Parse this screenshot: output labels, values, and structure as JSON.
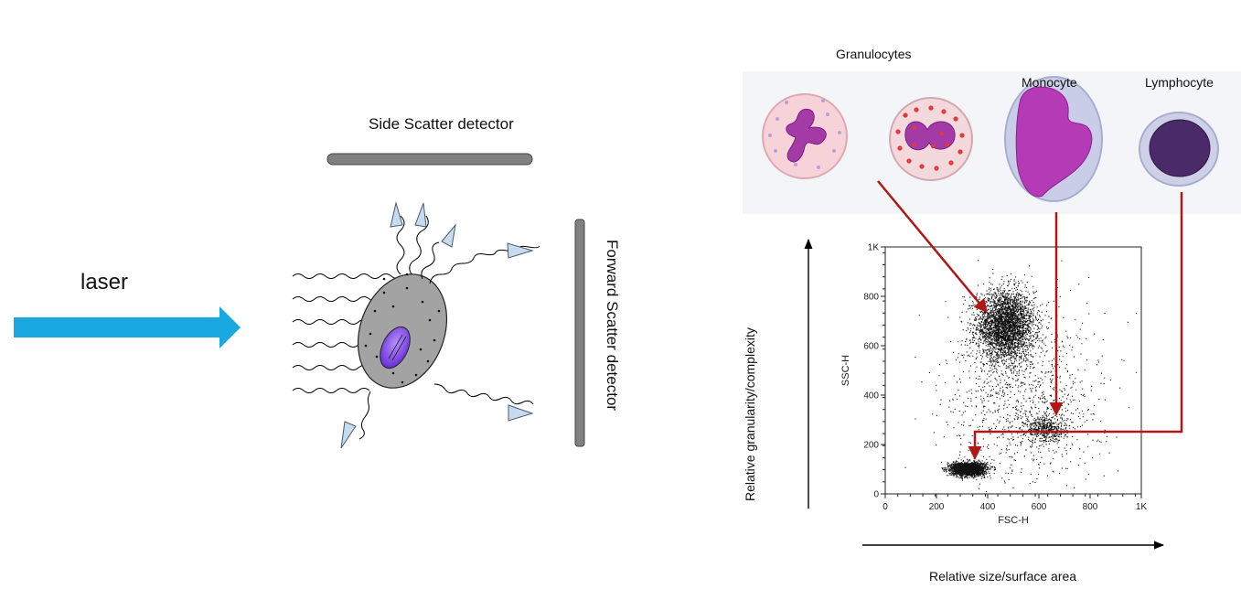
{
  "left": {
    "laser_label": "laser",
    "side_detector_label": "Side Scatter detector",
    "forward_detector_label": "Forward Scatter detector",
    "colors": {
      "laser": "#1aa8e0",
      "detector": "#808080",
      "cell": "#a3a3a3",
      "nucleus": "#7d3fe0",
      "ray_arrow": "#c7dbf0"
    }
  },
  "right": {
    "cells": [
      {
        "name": "Granulocytes",
        "icon": "neutrophil-cell"
      },
      {
        "name": "",
        "icon": "eosinophil-cell"
      },
      {
        "name": "Monocyte",
        "icon": "monocyte-cell"
      },
      {
        "name": "Lymphocyte",
        "icon": "lymphocyte-cell"
      }
    ],
    "y_axis_label": "Relative granularity/complexity",
    "x_axis_label": "Relative size/surface area",
    "connector_color": "#b01818"
  },
  "chart_data": {
    "type": "scatter",
    "xlabel": "FSC-H",
    "ylabel": "SSC-H",
    "xlim": [
      0,
      1024
    ],
    "ylim": [
      0,
      1024
    ],
    "x_ticks": [
      "0",
      "200",
      "400",
      "600",
      "800",
      "1K"
    ],
    "y_ticks": [
      "0",
      "200",
      "400",
      "600",
      "800",
      "1K"
    ],
    "grid": false,
    "clusters": [
      {
        "population": "Granulocytes",
        "center": [
          480,
          700
        ],
        "spread": [
          95,
          120
        ],
        "points": 3400
      },
      {
        "population": "Monocyte",
        "center": [
          640,
          270
        ],
        "spread": [
          70,
          45
        ],
        "points": 500
      },
      {
        "population": "Lymphocyte",
        "center": [
          330,
          105
        ],
        "spread": [
          55,
          22
        ],
        "points": 2600
      },
      {
        "population": "Background",
        "center": [
          560,
          400
        ],
        "spread": [
          260,
          300
        ],
        "points": 1100
      }
    ]
  }
}
